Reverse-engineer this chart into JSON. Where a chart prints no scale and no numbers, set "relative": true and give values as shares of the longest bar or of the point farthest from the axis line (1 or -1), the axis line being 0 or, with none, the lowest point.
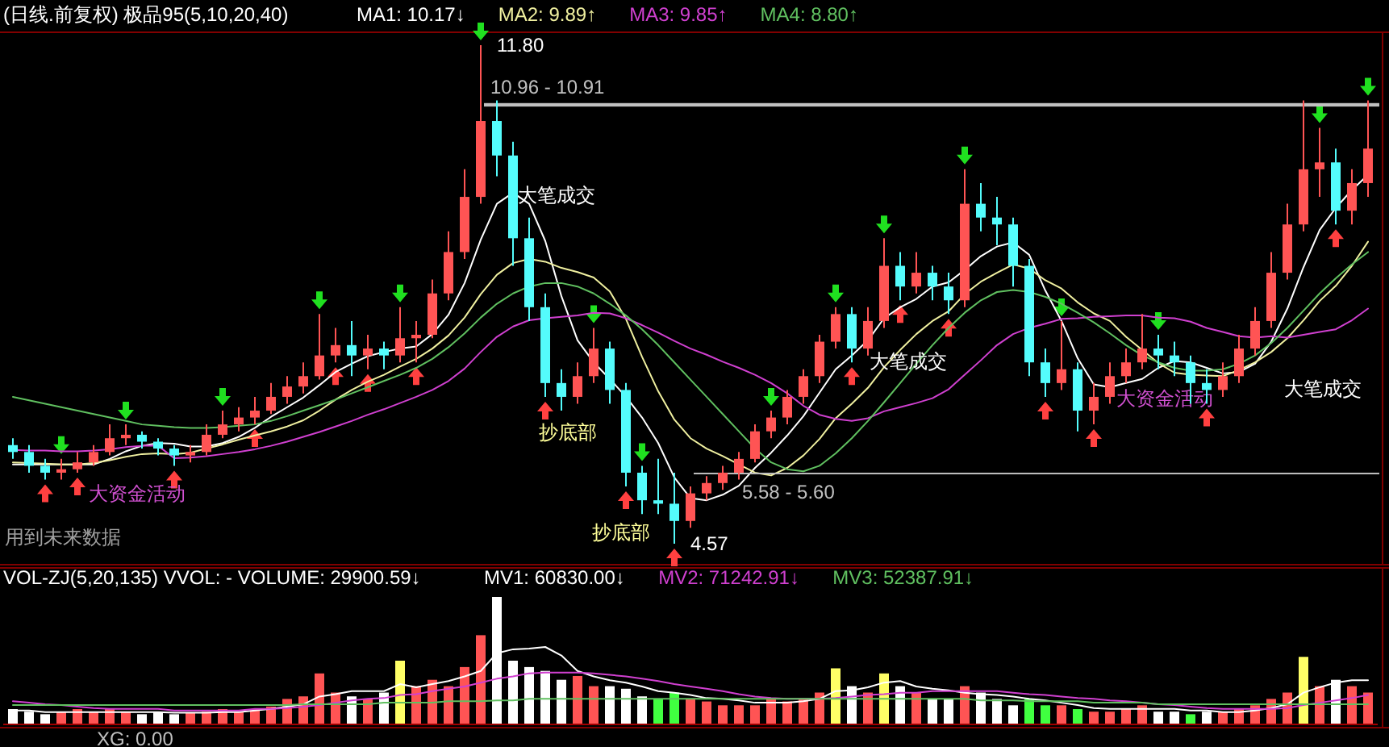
{
  "chart_data": [
    {
      "type": "candlestick",
      "title": "(日线.前复权) 极品95(5,10,20,40)",
      "legend": "top left",
      "categories": [
        null,
        null,
        null,
        null,
        null,
        null,
        null,
        null,
        null,
        null,
        null,
        null,
        null,
        null,
        null,
        null,
        null,
        null,
        null,
        null,
        null,
        null,
        null,
        null,
        null,
        null,
        null,
        null,
        null,
        null,
        null,
        null,
        null,
        null,
        null,
        null,
        null,
        null,
        null,
        null,
        null,
        null,
        null,
        null,
        null,
        null,
        null,
        null,
        null,
        null,
        null,
        null,
        null,
        null,
        null,
        null,
        null,
        null,
        null,
        null,
        null,
        null,
        null,
        null,
        null,
        null,
        null,
        null,
        null,
        null,
        null,
        null,
        null,
        null,
        null,
        null,
        null,
        null,
        null,
        null,
        null,
        null,
        null,
        null,
        null
      ],
      "ohlc": [
        [
          6.0,
          6.1,
          5.8,
          5.9
        ],
        [
          5.9,
          6.0,
          5.6,
          5.7
        ],
        [
          5.7,
          5.8,
          5.5,
          5.6
        ],
        [
          5.6,
          5.8,
          5.5,
          5.65
        ],
        [
          5.65,
          5.9,
          5.6,
          5.75
        ],
        [
          5.75,
          6.0,
          5.7,
          5.9
        ],
        [
          5.9,
          6.3,
          5.85,
          6.1
        ],
        [
          6.1,
          6.3,
          6.0,
          6.15
        ],
        [
          6.15,
          6.2,
          5.95,
          6.05
        ],
        [
          6.05,
          6.1,
          5.85,
          5.95
        ],
        [
          5.95,
          6.0,
          5.7,
          5.85
        ],
        [
          5.85,
          6.0,
          5.75,
          5.9
        ],
        [
          5.9,
          6.3,
          5.85,
          6.15
        ],
        [
          6.15,
          6.5,
          6.1,
          6.3
        ],
        [
          6.3,
          6.55,
          6.2,
          6.4
        ],
        [
          6.4,
          6.7,
          6.3,
          6.5
        ],
        [
          6.5,
          6.9,
          6.45,
          6.7
        ],
        [
          6.7,
          7.0,
          6.6,
          6.85
        ],
        [
          6.85,
          7.2,
          6.75,
          7.0
        ],
        [
          7.0,
          7.9,
          6.95,
          7.3
        ],
        [
          7.3,
          7.7,
          7.2,
          7.45
        ],
        [
          7.45,
          7.8,
          7.0,
          7.3
        ],
        [
          7.3,
          7.6,
          7.1,
          7.4
        ],
        [
          7.4,
          7.5,
          7.1,
          7.3
        ],
        [
          7.3,
          8.0,
          7.2,
          7.55
        ],
        [
          7.55,
          7.8,
          7.2,
          7.6
        ],
        [
          7.6,
          8.4,
          7.55,
          8.2
        ],
        [
          8.2,
          9.1,
          8.1,
          8.8
        ],
        [
          8.8,
          10.0,
          8.7,
          9.6
        ],
        [
          9.6,
          11.8,
          9.5,
          10.7
        ],
        [
          10.7,
          11.0,
          9.9,
          10.2
        ],
        [
          10.2,
          10.4,
          8.6,
          9.0
        ],
        [
          9.0,
          9.3,
          7.8,
          8.0
        ],
        [
          8.0,
          8.2,
          6.7,
          6.9
        ],
        [
          6.9,
          7.1,
          6.5,
          6.7
        ],
        [
          6.7,
          7.2,
          6.6,
          7.0
        ],
        [
          7.0,
          7.7,
          6.9,
          7.4
        ],
        [
          7.4,
          7.5,
          6.6,
          6.8
        ],
        [
          6.8,
          6.9,
          5.4,
          5.6
        ],
        [
          5.6,
          5.7,
          5.0,
          5.2
        ],
        [
          5.2,
          5.8,
          5.0,
          5.15
        ],
        [
          5.15,
          5.6,
          4.57,
          4.9
        ],
        [
          4.9,
          5.4,
          4.8,
          5.3
        ],
        [
          5.3,
          5.55,
          5.2,
          5.45
        ],
        [
          5.45,
          5.7,
          5.35,
          5.6
        ],
        [
          5.6,
          5.9,
          5.5,
          5.8
        ],
        [
          5.8,
          6.3,
          5.75,
          6.2
        ],
        [
          6.2,
          6.5,
          6.1,
          6.4
        ],
        [
          6.4,
          6.8,
          6.3,
          6.7
        ],
        [
          6.7,
          7.1,
          6.6,
          7.0
        ],
        [
          7.0,
          7.6,
          6.9,
          7.5
        ],
        [
          7.5,
          8.0,
          7.4,
          7.9
        ],
        [
          7.9,
          8.0,
          7.2,
          7.4
        ],
        [
          7.4,
          8.0,
          7.3,
          7.8
        ],
        [
          7.8,
          9.0,
          7.7,
          8.6
        ],
        [
          8.6,
          8.8,
          8.1,
          8.3
        ],
        [
          8.3,
          8.8,
          8.2,
          8.5
        ],
        [
          8.5,
          8.6,
          8.1,
          8.3
        ],
        [
          8.3,
          8.5,
          7.9,
          8.1
        ],
        [
          8.1,
          10.0,
          8.0,
          9.5
        ],
        [
          9.5,
          9.8,
          9.1,
          9.3
        ],
        [
          9.3,
          9.6,
          8.9,
          9.2
        ],
        [
          9.2,
          9.3,
          8.3,
          8.6
        ],
        [
          8.6,
          8.7,
          7.0,
          7.2
        ],
        [
          7.2,
          7.4,
          6.7,
          6.9
        ],
        [
          6.9,
          7.8,
          6.8,
          7.1
        ],
        [
          7.1,
          7.2,
          6.2,
          6.5
        ],
        [
          6.5,
          6.9,
          6.3,
          6.7
        ],
        [
          6.7,
          7.2,
          6.6,
          7.0
        ],
        [
          7.0,
          7.4,
          6.9,
          7.2
        ],
        [
          7.2,
          7.9,
          7.1,
          7.4
        ],
        [
          7.4,
          7.6,
          7.1,
          7.3
        ],
        [
          7.3,
          7.5,
          7.0,
          7.2
        ],
        [
          7.2,
          7.3,
          6.6,
          6.9
        ],
        [
          6.9,
          7.1,
          6.6,
          6.8
        ],
        [
          6.8,
          7.2,
          6.7,
          7.0
        ],
        [
          7.0,
          7.6,
          6.9,
          7.4
        ],
        [
          7.4,
          8.0,
          7.3,
          7.8
        ],
        [
          7.8,
          8.8,
          7.7,
          8.5
        ],
        [
          8.5,
          9.5,
          8.4,
          9.2
        ],
        [
          9.2,
          11.0,
          9.1,
          10.0
        ],
        [
          10.0,
          10.6,
          9.6,
          10.1
        ],
        [
          10.1,
          10.3,
          9.2,
          9.4
        ],
        [
          9.4,
          10.0,
          9.2,
          9.8
        ],
        [
          9.8,
          11.0,
          9.6,
          10.3
        ]
      ],
      "colors": [
        "#54fcfc",
        "#54fcfc",
        "#54fcfc",
        "#ff5454",
        "#ff5454",
        "#ff5454",
        "#ff5454",
        "#ff5454",
        "#54fcfc",
        "#54fcfc",
        "#54fcfc",
        "#ff5454",
        "#ff5454",
        "#ff5454",
        "#ff5454",
        "#ff5454",
        "#ff5454",
        "#ff5454",
        "#ff5454",
        "#ff5454",
        "#ff5454",
        "#54fcfc",
        "#ff5454",
        "#54fcfc",
        "#ff5454",
        "#ff5454",
        "#ff5454",
        "#ff5454",
        "#ff5454",
        "#ff5454",
        "#54fcfc",
        "#54fcfc",
        "#54fcfc",
        "#54fcfc",
        "#54fcfc",
        "#ff5454",
        "#ff5454",
        "#54fcfc",
        "#54fcfc",
        "#54fcfc",
        "#54fcfc",
        "#54fcfc",
        "#ff5454",
        "#ff5454",
        "#ff5454",
        "#ff5454",
        "#ff5454",
        "#ff5454",
        "#ff5454",
        "#ff5454",
        "#ff5454",
        "#ff5454",
        "#54fcfc",
        "#ff5454",
        "#ff5454",
        "#54fcfc",
        "#ff5454",
        "#54fcfc",
        "#54fcfc",
        "#ff5454",
        "#54fcfc",
        "#54fcfc",
        "#54fcfc",
        "#54fcfc",
        "#54fcfc",
        "#ff5454",
        "#54fcfc",
        "#ff5454",
        "#ff5454",
        "#ff5454",
        "#ff5454",
        "#54fcfc",
        "#54fcfc",
        "#54fcfc",
        "#54fcfc",
        "#ff5454",
        "#ff5454",
        "#ff5454",
        "#ff5454",
        "#ff5454",
        "#ff5454",
        "#ff5454",
        "#54fcfc",
        "#ff5454",
        "#ff5454"
      ],
      "series": [
        {
          "type": "line",
          "name": "MA1: 10.17↓",
          "color": "#ffffff",
          "values": [
            5.72,
            5.72,
            5.72,
            5.72,
            5.72,
            5.72,
            5.8,
            5.91,
            5.99,
            6.03,
            6.02,
            5.98,
            5.98,
            6.03,
            6.12,
            6.25,
            6.41,
            6.55,
            6.69,
            6.87,
            7.06,
            7.18,
            7.29,
            7.35,
            7.4,
            7.43,
            7.61,
            7.89,
            8.35,
            8.98,
            9.5,
            9.66,
            9.5,
            8.96,
            8.16,
            7.52,
            7.2,
            6.96,
            6.7,
            6.4,
            6.03,
            5.53,
            5.23,
            5.2,
            5.28,
            5.41,
            5.67,
            5.89,
            6.14,
            6.42,
            6.76,
            7.1,
            7.3,
            7.52,
            7.84,
            8.0,
            8.12,
            8.3,
            8.36,
            8.54,
            8.74,
            8.88,
            8.94,
            8.76,
            8.24,
            7.8,
            7.26,
            6.88,
            6.84,
            6.9,
            6.96,
            7.12,
            7.22,
            7.2,
            7.12,
            7.04,
            7.06,
            7.18,
            7.5,
            7.98,
            8.58,
            9.12,
            9.44,
            9.7,
            9.92
          ]
        },
        {
          "type": "line",
          "name": "MA2: 9.89↑",
          "color": "#f0f0a0",
          "values": [
            5.75,
            5.74,
            5.73,
            5.72,
            5.72,
            5.74,
            5.78,
            5.83,
            5.87,
            5.88,
            5.87,
            5.89,
            5.95,
            6.01,
            6.08,
            6.14,
            6.2,
            6.27,
            6.36,
            6.5,
            6.66,
            6.8,
            6.92,
            7.02,
            7.14,
            7.25,
            7.4,
            7.59,
            7.85,
            8.19,
            8.47,
            8.64,
            8.7,
            8.66,
            8.57,
            8.51,
            8.43,
            8.23,
            7.83,
            7.28,
            6.78,
            6.37,
            6.1,
            5.95,
            5.84,
            5.72,
            5.6,
            5.56,
            5.67,
            5.85,
            6.09,
            6.39,
            6.6,
            6.83,
            7.13,
            7.38,
            7.61,
            7.8,
            7.94,
            8.19,
            8.37,
            8.5,
            8.62,
            8.56,
            8.39,
            8.27,
            8.07,
            7.91,
            7.8,
            7.57,
            7.38,
            7.19,
            7.05,
            7.02,
            7.01,
            7.0,
            7.09,
            7.2,
            7.35,
            7.55,
            7.81,
            8.09,
            8.31,
            8.6,
            8.95
          ]
        },
        {
          "type": "line",
          "name": "MA3: 9.85↑",
          "color": "#d040d0",
          "values": [
            5.93,
            5.92,
            5.92,
            5.91,
            5.91,
            5.92,
            5.94,
            5.97,
            5.99,
            5.99,
            5.81,
            5.82,
            5.84,
            5.87,
            5.9,
            5.94,
            5.99,
            6.05,
            6.12,
            6.19,
            6.27,
            6.35,
            6.44,
            6.52,
            6.61,
            6.7,
            6.8,
            6.93,
            7.11,
            7.35,
            7.57,
            7.72,
            7.81,
            7.84,
            7.86,
            7.88,
            7.92,
            7.91,
            7.84,
            7.74,
            7.63,
            7.51,
            7.4,
            7.31,
            7.21,
            7.12,
            7.02,
            6.9,
            6.75,
            6.57,
            6.44,
            6.38,
            6.35,
            6.39,
            6.49,
            6.55,
            6.61,
            6.68,
            6.81,
            7.02,
            7.23,
            7.45,
            7.61,
            7.7,
            7.76,
            7.83,
            7.84,
            7.86,
            7.87,
            7.88,
            7.88,
            7.85,
            7.84,
            7.79,
            7.7,
            7.64,
            7.58,
            7.56,
            7.58,
            7.56,
            7.6,
            7.64,
            7.68,
            7.81,
            7.98
          ]
        },
        {
          "type": "line",
          "name": "MA4: 8.80↑",
          "color": "#60c060",
          "values": [
            6.7,
            6.65,
            6.6,
            6.55,
            6.5,
            6.45,
            6.4,
            6.35,
            6.3,
            6.28,
            6.26,
            6.25,
            6.25,
            6.26,
            6.28,
            6.3,
            6.35,
            6.42,
            6.5,
            6.58,
            6.66,
            6.75,
            6.84,
            6.93,
            7.02,
            7.12,
            7.25,
            7.42,
            7.62,
            7.85,
            8.05,
            8.2,
            8.3,
            8.35,
            8.35,
            8.3,
            8.2,
            8.05,
            7.88,
            7.68,
            7.45,
            7.2,
            6.95,
            6.7,
            6.45,
            6.2,
            5.95,
            5.75,
            5.65,
            5.62,
            5.7,
            5.88,
            6.1,
            6.35,
            6.62,
            6.9,
            7.18,
            7.45,
            7.7,
            7.92,
            8.1,
            8.22,
            8.25,
            8.22,
            8.15,
            8.05,
            7.92,
            7.78,
            7.62,
            7.45,
            7.3,
            7.2,
            7.12,
            7.08,
            7.08,
            7.1,
            7.18,
            7.3,
            7.48,
            7.7,
            7.95,
            8.2,
            8.42,
            8.62,
            8.8
          ]
        }
      ],
      "bands": [
        {
          "axis": "y",
          "from": 10.91,
          "to": 10.96,
          "label": "10.96 - 10.91",
          "color": "#c0c0c0"
        },
        {
          "axis": "y",
          "from": 5.58,
          "to": 5.6,
          "label": "5.58 - 5.60",
          "color": "#c0c0c0"
        }
      ],
      "annotations": [
        "大笔成交",
        "大笔成交",
        "大笔成交",
        "大资金活动",
        "大资金活动",
        "抄底部",
        "抄底部",
        "用到未来数据",
        "11.80",
        "4.57"
      ]
    },
    {
      "type": "bar",
      "relative": true,
      "title": "VOL-ZJ(5,20,135)  VVOL: -  VOLUME: 29900.59↓",
      "categories": [
        null,
        null,
        null,
        null,
        null,
        null,
        null,
        null,
        null,
        null,
        null,
        null,
        null,
        null,
        null,
        null,
        null,
        null,
        null,
        null,
        null,
        null,
        null,
        null,
        null,
        null,
        null,
        null,
        null,
        null,
        null,
        null,
        null,
        null,
        null,
        null,
        null,
        null,
        null,
        null,
        null,
        null,
        null,
        null,
        null,
        null,
        null,
        null,
        null,
        null,
        null,
        null,
        null,
        null,
        null,
        null,
        null,
        null,
        null,
        null,
        null,
        null,
        null,
        null,
        null,
        null,
        null,
        null,
        null,
        null,
        null,
        null,
        null,
        null,
        null,
        null,
        null,
        null,
        null,
        null,
        null,
        null,
        null,
        null,
        null
      ],
      "values": [
        0.12,
        0.1,
        0.08,
        0.1,
        0.12,
        0.1,
        0.12,
        0.1,
        0.08,
        0.1,
        0.08,
        0.09,
        0.1,
        0.12,
        0.1,
        0.12,
        0.14,
        0.2,
        0.22,
        0.4,
        0.25,
        0.22,
        0.2,
        0.25,
        0.5,
        0.3,
        0.35,
        0.3,
        0.45,
        0.7,
        1,
        0.5,
        0.45,
        0.42,
        0.35,
        0.38,
        0.3,
        0.3,
        0.28,
        0.22,
        0.2,
        0.25,
        0.2,
        0.18,
        0.15,
        0.15,
        0.15,
        0.2,
        0.18,
        0.2,
        0.25,
        0.44,
        0.3,
        0.25,
        0.4,
        0.3,
        0.25,
        0.2,
        0.2,
        0.3,
        0.25,
        0.2,
        0.15,
        0.2,
        0.15,
        0.15,
        0.12,
        0.1,
        0.1,
        0.12,
        0.15,
        0.1,
        0.1,
        0.08,
        0.1,
        0.1,
        0.12,
        0.15,
        0.2,
        0.25,
        0.53,
        0.3,
        0.35,
        0.3,
        0.25
      ],
      "colors": [
        "#ffffff",
        "#ffffff",
        "#ffffff",
        "#ff5454",
        "#ff5454",
        "#ff5454",
        "#ff5454",
        "#ff5454",
        "#ffffff",
        "#ffffff",
        "#ffffff",
        "#ff5454",
        "#ff5454",
        "#ff5454",
        "#ff5454",
        "#ff5454",
        "#ff5454",
        "#ff5454",
        "#ff5454",
        "#ff5454",
        "#ff5454",
        "#ffffff",
        "#ff5454",
        "#ffffff",
        "#ffff66",
        "#ff5454",
        "#ff5454",
        "#ff5454",
        "#ff5454",
        "#ff5454",
        "#ffffff",
        "#ffffff",
        "#ffffff",
        "#ffffff",
        "#ffffff",
        "#ff5454",
        "#ff5454",
        "#ffffff",
        "#ffffff",
        "#ffffff",
        "#40ff40",
        "#40ff40",
        "#ff5454",
        "#ff5454",
        "#ff5454",
        "#ff5454",
        "#ff5454",
        "#ff5454",
        "#ff5454",
        "#ff5454",
        "#ff5454",
        "#ffff66",
        "#ffffff",
        "#ff5454",
        "#ffff66",
        "#ffffff",
        "#ff5454",
        "#ffffff",
        "#ffffff",
        "#ff5454",
        "#ffffff",
        "#ffffff",
        "#ffffff",
        "#40ff40",
        "#40ff40",
        "#ff5454",
        "#40ff40",
        "#ff5454",
        "#ff5454",
        "#ff5454",
        "#ff5454",
        "#ffffff",
        "#ffffff",
        "#40ff40",
        "#ffffff",
        "#ff5454",
        "#ff5454",
        "#ff5454",
        "#ff5454",
        "#ff5454",
        "#ffff66",
        "#ff5454",
        "#ffffff",
        "#ff5454",
        "#ff5454"
      ],
      "annotations": [
        "XG: 0.00"
      ]
    },
    {
      "type": "line",
      "relative": true,
      "legend": "top left",
      "categories": [
        null,
        null,
        null,
        null,
        null,
        null,
        null,
        null,
        null,
        null,
        null,
        null,
        null,
        null,
        null,
        null,
        null,
        null,
        null,
        null,
        null,
        null,
        null,
        null,
        null,
        null,
        null,
        null,
        null,
        null,
        null,
        null,
        null,
        null,
        null,
        null,
        null,
        null,
        null,
        null,
        null,
        null,
        null,
        null,
        null,
        null,
        null,
        null,
        null,
        null,
        null,
        null,
        null,
        null,
        null,
        null,
        null,
        null,
        null,
        null,
        null,
        null,
        null,
        null,
        null,
        null,
        null,
        null,
        null,
        null,
        null,
        null,
        null,
        null,
        null,
        null,
        null,
        null,
        null,
        null,
        null,
        null,
        null,
        null,
        null
      ],
      "series": [
        {
          "name": "MV1: 60830.00↓",
          "color": "#ffffff",
          "values": [
            0.18,
            0.18,
            0.16,
            0.16,
            0.16,
            0.16,
            0.16,
            0.16,
            0.16,
            0.16,
            0.15,
            0.15,
            0.15,
            0.16,
            0.16,
            0.18,
            0.2,
            0.23,
            0.26,
            0.36,
            0.39,
            0.43,
            0.43,
            0.43,
            0.52,
            0.48,
            0.52,
            0.56,
            0.62,
            0.69,
            0.92,
            0.97,
            0.98,
            1,
            0.89,
            0.69,
            0.62,
            0.57,
            0.54,
            0.49,
            0.43,
            0.41,
            0.38,
            0.34,
            0.33,
            0.31,
            0.28,
            0.28,
            0.28,
            0.3,
            0.33,
            0.43,
            0.44,
            0.48,
            0.54,
            0.56,
            0.49,
            0.46,
            0.44,
            0.41,
            0.39,
            0.38,
            0.36,
            0.33,
            0.31,
            0.28,
            0.25,
            0.21,
            0.2,
            0.2,
            0.2,
            0.2,
            0.2,
            0.18,
            0.18,
            0.16,
            0.16,
            0.18,
            0.21,
            0.26,
            0.41,
            0.48,
            0.54,
            0.57,
            0.57
          ]
        },
        {
          "name": "MV2: 71242.91↓",
          "color": "#d040d0",
          "values": [
            0.3,
            0.28,
            0.26,
            0.25,
            0.23,
            0.21,
            0.2,
            0.2,
            0.2,
            0.2,
            0.18,
            0.18,
            0.18,
            0.18,
            0.18,
            0.2,
            0.2,
            0.21,
            0.23,
            0.25,
            0.28,
            0.31,
            0.33,
            0.34,
            0.38,
            0.39,
            0.43,
            0.46,
            0.49,
            0.54,
            0.59,
            0.62,
            0.66,
            0.67,
            0.67,
            0.67,
            0.66,
            0.64,
            0.62,
            0.59,
            0.56,
            0.52,
            0.49,
            0.46,
            0.43,
            0.39,
            0.36,
            0.34,
            0.33,
            0.33,
            0.33,
            0.34,
            0.36,
            0.38,
            0.39,
            0.41,
            0.41,
            0.43,
            0.43,
            0.43,
            0.43,
            0.43,
            0.41,
            0.39,
            0.38,
            0.36,
            0.34,
            0.33,
            0.31,
            0.3,
            0.28,
            0.26,
            0.25,
            0.23,
            0.21,
            0.2,
            0.2,
            0.2,
            0.2,
            0.21,
            0.25,
            0.28,
            0.31,
            0.34,
            0.38
          ]
        },
        {
          "name": "MV3: 52387.91↓",
          "color": "#60c060",
          "values": [
            0.25,
            0.25,
            0.25,
            0.25,
            0.25,
            0.25,
            0.25,
            0.25,
            0.25,
            0.25,
            0.25,
            0.25,
            0.25,
            0.25,
            0.25,
            0.25,
            0.25,
            0.25,
            0.26,
            0.26,
            0.26,
            0.26,
            0.26,
            0.28,
            0.28,
            0.28,
            0.28,
            0.3,
            0.3,
            0.3,
            0.31,
            0.31,
            0.33,
            0.33,
            0.33,
            0.33,
            0.33,
            0.33,
            0.33,
            0.33,
            0.33,
            0.33,
            0.33,
            0.33,
            0.33,
            0.33,
            0.33,
            0.33,
            0.33,
            0.33,
            0.33,
            0.33,
            0.33,
            0.33,
            0.33,
            0.33,
            0.33,
            0.33,
            0.33,
            0.33,
            0.31,
            0.31,
            0.31,
            0.3,
            0.3,
            0.3,
            0.3,
            0.28,
            0.28,
            0.28,
            0.28,
            0.26,
            0.26,
            0.26,
            0.26,
            0.26,
            0.26,
            0.26,
            0.26,
            0.26,
            0.26,
            0.26,
            0.26,
            0.26,
            0.26
          ]
        }
      ]
    }
  ]
}
